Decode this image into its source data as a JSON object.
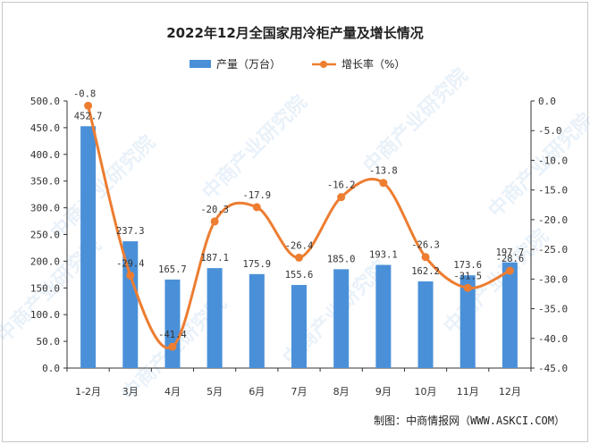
{
  "chart_data": {
    "type": "bar+line",
    "title": "2022年12月全国家用冷柜产量及增长情况",
    "categories": [
      "1-2月",
      "3月",
      "4月",
      "5月",
      "6月",
      "7月",
      "8月",
      "9月",
      "10月",
      "11月",
      "12月"
    ],
    "series": [
      {
        "name": "产量（万台）",
        "type": "bar",
        "axis": "left",
        "values": [
          452.7,
          237.3,
          165.7,
          187.1,
          175.9,
          155.6,
          185.0,
          193.1,
          162.2,
          173.6,
          197.7
        ],
        "labels": [
          "452.7",
          "237.3",
          "165.7",
          "187.1",
          "175.9",
          "155.6",
          "185.0",
          "193.1",
          "162.2",
          "173.6",
          "197.7"
        ],
        "color": "#4a90d9"
      },
      {
        "name": "增长率（%）",
        "type": "line",
        "axis": "right",
        "values": [
          -0.8,
          -29.4,
          -41.4,
          -20.3,
          -17.9,
          -26.4,
          -16.2,
          -13.8,
          -26.3,
          -31.5,
          -28.6
        ],
        "labels": [
          "-0.8",
          "-29.4",
          "-41.4",
          "-20.3",
          "-17.9",
          "-26.4",
          "-16.2",
          "-13.8",
          "-26.3",
          "-31.5",
          "-28.6"
        ],
        "color": "#ed7d31"
      }
    ],
    "y_left": {
      "ylim": [
        0,
        500
      ],
      "ticks": [
        "0.0",
        "50.0",
        "100.0",
        "150.0",
        "200.0",
        "250.0",
        "300.0",
        "350.0",
        "400.0",
        "450.0",
        "500.0"
      ]
    },
    "y_right": {
      "ylim": [
        -45,
        0
      ],
      "ticks": [
        "0.0",
        "-5.0",
        "-10.0",
        "-15.0",
        "-20.0",
        "-25.0",
        "-30.0",
        "-35.0",
        "-40.0",
        "-45.0"
      ]
    },
    "legend_position": "top-center",
    "grid": false
  },
  "watermark": "中商产业研究院",
  "source": "制图：中商情报网（WWW.ASKCI.COM）"
}
